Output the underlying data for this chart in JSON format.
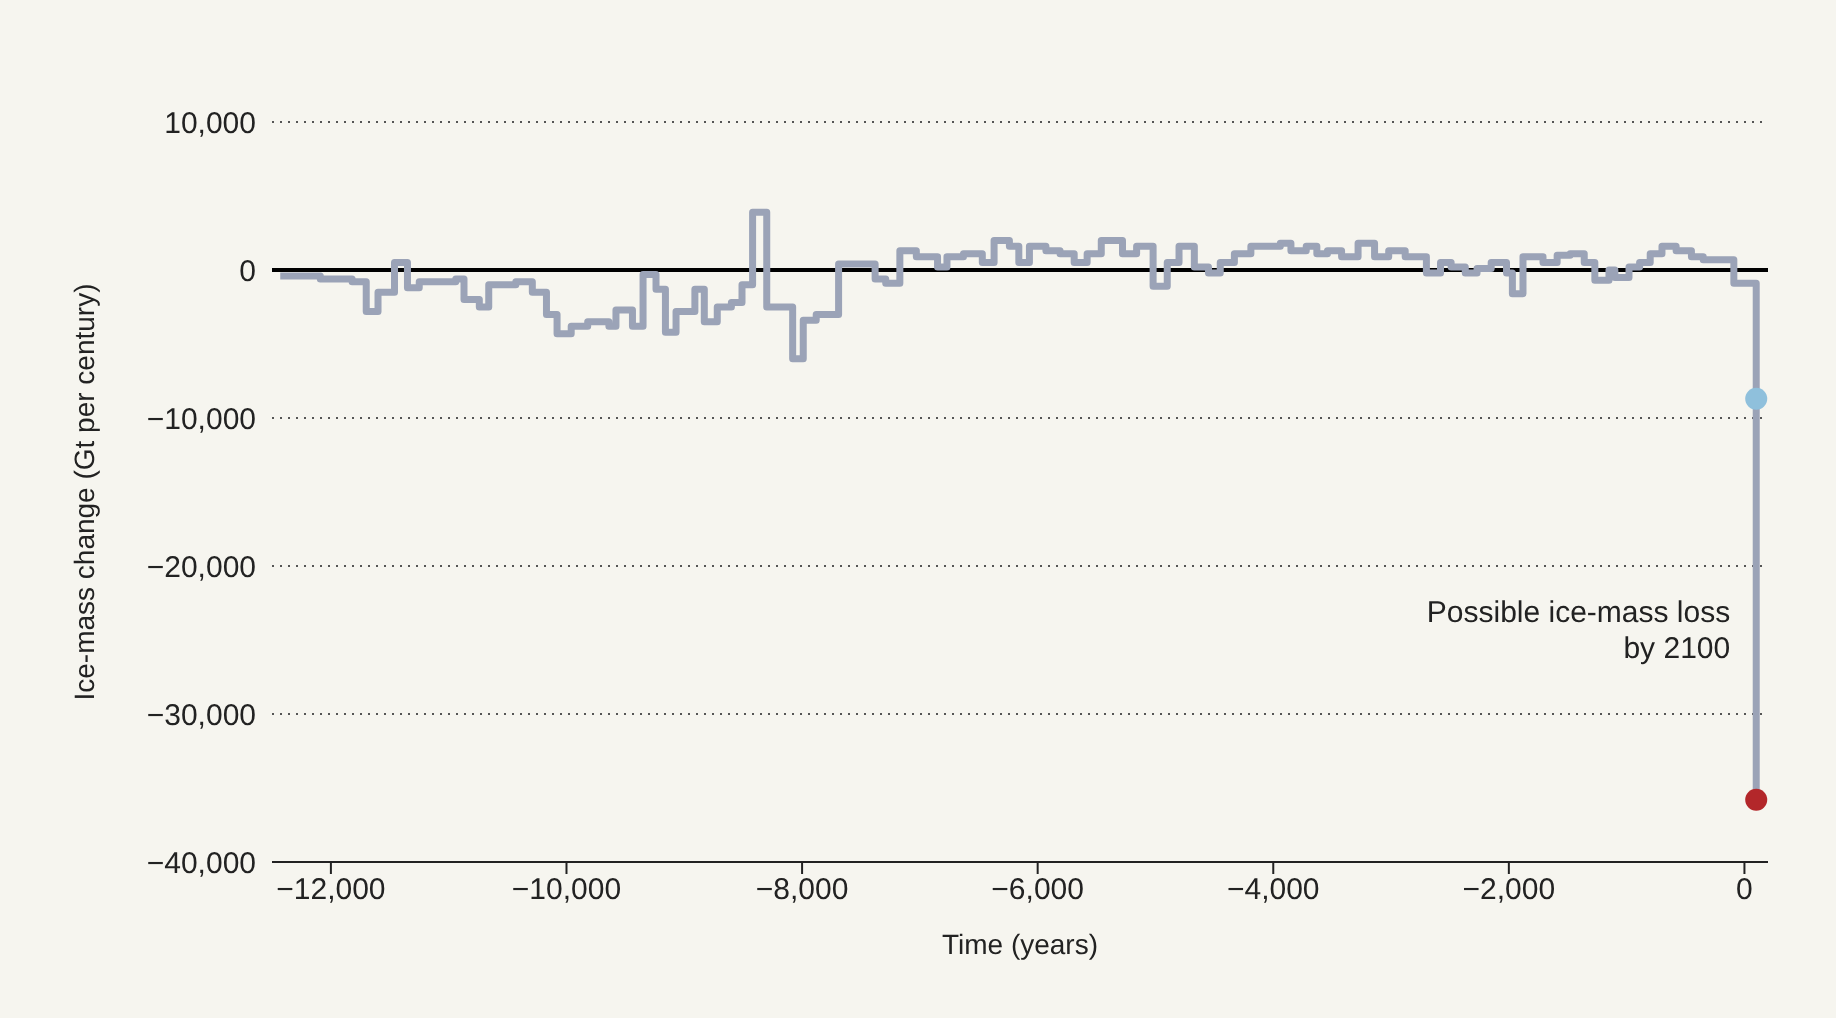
{
  "chart_data": {
    "type": "step",
    "xlabel": "Time (years)",
    "ylabel": "Ice-mass change (Gt per century)",
    "xlim": [
      -12500,
      200
    ],
    "xticks": [
      {
        "value": -12000,
        "label": "−12,000"
      },
      {
        "value": -10000,
        "label": "−10,000"
      },
      {
        "value": -8000,
        "label": "−8,000"
      },
      {
        "value": -6000,
        "label": "−6,000"
      },
      {
        "value": -4000,
        "label": "−4,000"
      },
      {
        "value": -2000,
        "label": "−2,000"
      },
      0
    ],
    "ylim": [
      -40000,
      10000
    ],
    "yticks": [
      {
        "value": -40000,
        "label": "−40,000"
      },
      {
        "value": -30000,
        "label": "−30,000"
      },
      {
        "value": -20000,
        "label": "−20,000"
      },
      {
        "value": -10000,
        "label": "−10,000"
      },
      0,
      {
        "value": 10000,
        "label": "10,000"
      }
    ],
    "grid": "y",
    "ref_lines": [
      {
        "axis": "y",
        "value": 0,
        "color": "#000000"
      }
    ],
    "annotations": [
      {
        "text": "Possible ice-mass loss by 2100",
        "x": 100,
        "y": -25000
      }
    ],
    "series": [
      {
        "color": "#9ba3b7",
        "marker": "none",
        "x": [
          -12430,
          -12090,
          -11820,
          -11700,
          -11600,
          -11460,
          -11350,
          -11250,
          -10940,
          -10870,
          -10740,
          -10660,
          -10430,
          -10290,
          -10170,
          -10080,
          -9960,
          -9820,
          -9640,
          -9580,
          -9440,
          -9350,
          -9240,
          -9160,
          -9070,
          -8910,
          -8830,
          -8720,
          -8600,
          -8510,
          -8420,
          -8300,
          -8200,
          -8080,
          -7990,
          -7880,
          -7690,
          -7380,
          -7290,
          -7170,
          -7030,
          -6850,
          -6770,
          -6630,
          -6470,
          -6370,
          -6240,
          -6160,
          -6070,
          -5930,
          -5810,
          -5690,
          -5580,
          -5460,
          -5280,
          -5160,
          -5020,
          -4900,
          -4800,
          -4670,
          -4550,
          -4450,
          -4330,
          -4190,
          -3940,
          -3850,
          -3720,
          -3630,
          -3540,
          -3420,
          -3280,
          -3140,
          -3020,
          -2880,
          -2700,
          -2580,
          -2490,
          -2370,
          -2270,
          -2150,
          -2020,
          -1970,
          -1880,
          -1710,
          -1590,
          -1480,
          -1360,
          -1270,
          -1150,
          -1100,
          -980,
          -890,
          -800,
          -700,
          -580,
          -450,
          -350,
          -190,
          -90,
          100,
          100
        ],
        "values": [
          -400,
          -600,
          -800,
          -2800,
          -1500,
          500,
          -1200,
          -800,
          -600,
          -2000,
          -2500,
          -1000,
          -800,
          -1500,
          -3000,
          -4300,
          -3800,
          -3500,
          -3800,
          -2700,
          -3800,
          -300,
          -1300,
          -4200,
          -2800,
          -1300,
          -3500,
          -2500,
          -2200,
          -1000,
          3900,
          -2500,
          -2500,
          -6000,
          -3400,
          -3000,
          400,
          -600,
          -900,
          1300,
          900,
          200,
          900,
          1100,
          500,
          2000,
          1600,
          500,
          1600,
          1300,
          1100,
          500,
          1100,
          2000,
          1100,
          1600,
          -1100,
          500,
          1600,
          200,
          -200,
          500,
          1100,
          1600,
          1800,
          1300,
          1600,
          1100,
          1300,
          900,
          1800,
          900,
          1300,
          900,
          -200,
          500,
          200,
          -200,
          100,
          500,
          -200,
          -1600,
          900,
          500,
          1000,
          1100,
          500,
          -700,
          0,
          -500,
          200,
          500,
          1100,
          1600,
          1300,
          900,
          700,
          700,
          -900,
          -900,
          -35800
        ]
      },
      {
        "type": "scatter",
        "marker": "circle",
        "x": [
          100,
          100
        ],
        "values": [
          -8700,
          -35800
        ],
        "colors": [
          "#8fc0dc",
          "#b3272a"
        ]
      }
    ]
  }
}
